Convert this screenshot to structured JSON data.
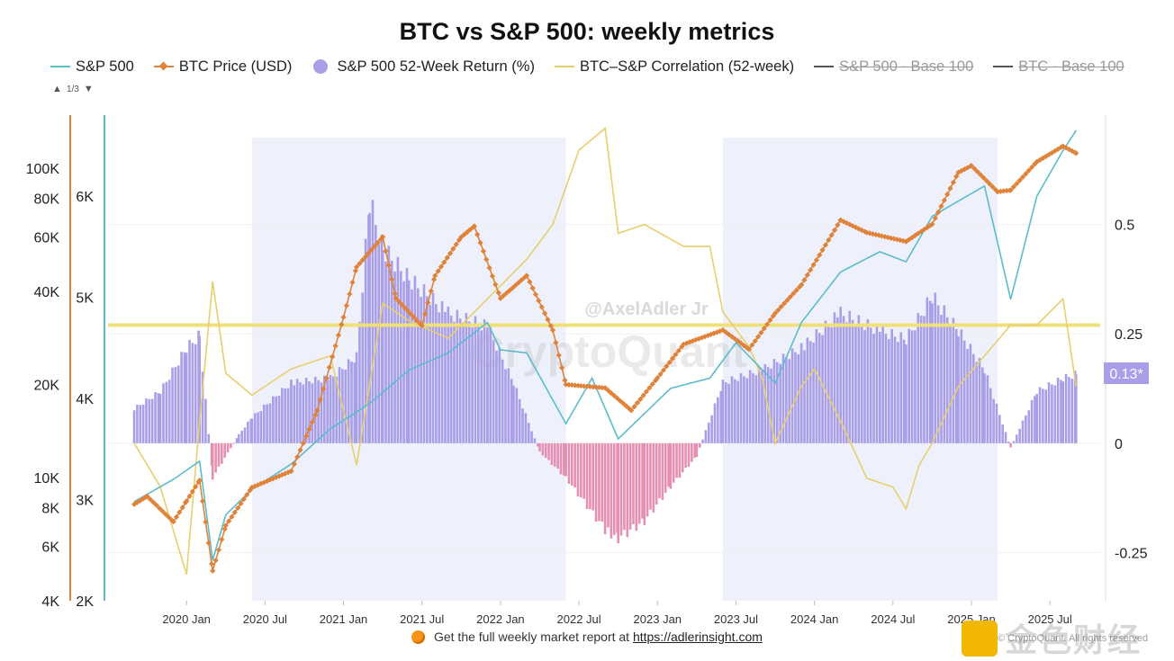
{
  "chart_data": {
    "type": "line",
    "title": "BTC vs S&P 500: weekly metrics",
    "watermarks": [
      "@AxelAdler Jr",
      "CryptoQuant"
    ],
    "footer": {
      "text": "Get the full weekly market report at",
      "link": "https://adlerinsight.com"
    },
    "copyright": "© CryptoQuant. All rights reserved",
    "brand_watermark": "金色财经",
    "pager": {
      "up": "▲",
      "label": "1/3",
      "down": "▼"
    },
    "x_ticks": [
      "2020 Jan",
      "2020 Jul",
      "2021 Jan",
      "2021 Jul",
      "2022 Jan",
      "2022 Jul",
      "2023 Jan",
      "2023 Jul",
      "2024 Jan",
      "2024 Jul",
      "2025 Jan",
      "2025 Jul"
    ],
    "btc_axis": {
      "ticks": [
        "4K",
        "6K",
        "8K",
        "10K",
        "20K",
        "40K",
        "60K",
        "80K",
        "100K"
      ],
      "scale": "log",
      "range": [
        4000,
        130000
      ]
    },
    "spx_axis": {
      "ticks": [
        "2K",
        "3K",
        "4K",
        "5K",
        "6K"
      ],
      "range": [
        2000,
        6800
      ]
    },
    "right_axis": {
      "ticks": [
        "0.5",
        "0.25",
        "0",
        "-0.25"
      ],
      "range": [
        -0.36,
        0.75
      ]
    },
    "current_badge": "0.13*",
    "correlation_reference": 0.27,
    "colors": {
      "spx": "#5bbccb",
      "btc": "#e0833a",
      "ret_pos": "#a99ee8",
      "ret_neg": "#e68fb2",
      "corr": "#e8cf6e",
      "refline": "#efe07a",
      "shade": "#eef1fb",
      "btc_axis_line": "#e0833a",
      "spx_axis_line": "#5bbccb",
      "badge": "#a99ee8"
    },
    "shaded_ranges": [
      [
        "2020-06",
        "2022-06"
      ],
      [
        "2023-06",
        "2025-03"
      ]
    ],
    "series": [
      {
        "name": "S&P 500",
        "color": "#5bbccb",
        "axis": "spx",
        "points": [
          [
            "2019-09",
            2980
          ],
          [
            "2019-12",
            3200
          ],
          [
            "2020-02",
            3380
          ],
          [
            "2020-03",
            2400
          ],
          [
            "2020-04",
            2850
          ],
          [
            "2020-06",
            3100
          ],
          [
            "2020-09",
            3350
          ],
          [
            "2020-12",
            3700
          ],
          [
            "2021-03",
            3950
          ],
          [
            "2021-06",
            4280
          ],
          [
            "2021-09",
            4450
          ],
          [
            "2021-12",
            4750
          ],
          [
            "2022-01",
            4480
          ],
          [
            "2022-03",
            4450
          ],
          [
            "2022-06",
            3750
          ],
          [
            "2022-08",
            4200
          ],
          [
            "2022-10",
            3600
          ],
          [
            "2022-12",
            3850
          ],
          [
            "2023-02",
            4100
          ],
          [
            "2023-05",
            4200
          ],
          [
            "2023-07",
            4550
          ],
          [
            "2023-10",
            4150
          ],
          [
            "2023-12",
            4750
          ],
          [
            "2024-03",
            5250
          ],
          [
            "2024-06",
            5450
          ],
          [
            "2024-08",
            5350
          ],
          [
            "2024-10",
            5800
          ],
          [
            "2024-12",
            5950
          ],
          [
            "2025-02",
            6100
          ],
          [
            "2025-04",
            4980
          ],
          [
            "2025-06",
            6000
          ],
          [
            "2025-08",
            6450
          ],
          [
            "2025-09",
            6650
          ]
        ]
      },
      {
        "name": "BTC Price (USD)",
        "color": "#e0833a",
        "axis": "btc",
        "points": [
          [
            "2019-09",
            8200
          ],
          [
            "2019-10",
            8700
          ],
          [
            "2019-12",
            7200
          ],
          [
            "2020-01",
            8400
          ],
          [
            "2020-02",
            9800
          ],
          [
            "2020-03",
            5000
          ],
          [
            "2020-04",
            7000
          ],
          [
            "2020-06",
            9300
          ],
          [
            "2020-09",
            10500
          ],
          [
            "2020-11",
            16500
          ],
          [
            "2021-01",
            33000
          ],
          [
            "2021-02",
            48000
          ],
          [
            "2021-04",
            60000
          ],
          [
            "2021-05",
            38000
          ],
          [
            "2021-07",
            31000
          ],
          [
            "2021-08",
            45000
          ],
          [
            "2021-10",
            60000
          ],
          [
            "2021-11",
            65000
          ],
          [
            "2022-01",
            38000
          ],
          [
            "2022-03",
            45000
          ],
          [
            "2022-05",
            30000
          ],
          [
            "2022-06",
            20000
          ],
          [
            "2022-09",
            19500
          ],
          [
            "2022-11",
            16500
          ],
          [
            "2023-01",
            21000
          ],
          [
            "2023-03",
            27000
          ],
          [
            "2023-06",
            30000
          ],
          [
            "2023-08",
            26000
          ],
          [
            "2023-10",
            34000
          ],
          [
            "2023-12",
            42000
          ],
          [
            "2024-03",
            68000
          ],
          [
            "2024-05",
            62000
          ],
          [
            "2024-08",
            58000
          ],
          [
            "2024-10",
            66000
          ],
          [
            "2024-12",
            97000
          ],
          [
            "2025-01",
            102000
          ],
          [
            "2025-03",
            84000
          ],
          [
            "2025-04",
            85000
          ],
          [
            "2025-06",
            105000
          ],
          [
            "2025-08",
            118000
          ],
          [
            "2025-09",
            112000
          ]
        ]
      },
      {
        "name": "S&P 500 52-Week Return (%)",
        "color": "#a99ee8",
        "axis": "right",
        "style": "bars",
        "points": [
          [
            "2019-09",
            0.08
          ],
          [
            "2019-11",
            0.12
          ],
          [
            "2020-01",
            0.22
          ],
          [
            "2020-02",
            0.25
          ],
          [
            "2020-03",
            -0.08
          ],
          [
            "2020-05",
            0.02
          ],
          [
            "2020-06",
            0.06
          ],
          [
            "2020-09",
            0.14
          ],
          [
            "2020-12",
            0.15
          ],
          [
            "2021-02",
            0.2
          ],
          [
            "2021-03",
            0.56
          ],
          [
            "2021-04",
            0.45
          ],
          [
            "2021-06",
            0.38
          ],
          [
            "2021-09",
            0.3
          ],
          [
            "2021-12",
            0.27
          ],
          [
            "2022-02",
            0.14
          ],
          [
            "2022-04",
            -0.02
          ],
          [
            "2022-06",
            -0.08
          ],
          [
            "2022-09",
            -0.2
          ],
          [
            "2022-10",
            -0.22
          ],
          [
            "2022-12",
            -0.18
          ],
          [
            "2023-02",
            -0.1
          ],
          [
            "2023-04",
            -0.03
          ],
          [
            "2023-06",
            0.14
          ],
          [
            "2023-09",
            0.17
          ],
          [
            "2023-12",
            0.22
          ],
          [
            "2024-03",
            0.3
          ],
          [
            "2024-06",
            0.26
          ],
          [
            "2024-08",
            0.24
          ],
          [
            "2024-10",
            0.34
          ],
          [
            "2024-12",
            0.26
          ],
          [
            "2025-02",
            0.17
          ],
          [
            "2025-04",
            -0.01
          ],
          [
            "2025-06",
            0.12
          ],
          [
            "2025-08",
            0.15
          ],
          [
            "2025-09",
            0.16
          ]
        ]
      },
      {
        "name": "BTC–S&P Correlation (52-week)",
        "color": "#e8cf6e",
        "axis": "right",
        "points": [
          [
            "2019-09",
            0.0
          ],
          [
            "2019-11",
            -0.1
          ],
          [
            "2020-01",
            -0.3
          ],
          [
            "2020-02",
            0.05
          ],
          [
            "2020-03",
            0.37
          ],
          [
            "2020-04",
            0.16
          ],
          [
            "2020-06",
            0.11
          ],
          [
            "2020-09",
            0.17
          ],
          [
            "2020-12",
            0.2
          ],
          [
            "2021-02",
            -0.05
          ],
          [
            "2021-04",
            0.32
          ],
          [
            "2021-06",
            0.28
          ],
          [
            "2021-09",
            0.24
          ],
          [
            "2021-12",
            0.33
          ],
          [
            "2022-03",
            0.42
          ],
          [
            "2022-05",
            0.5
          ],
          [
            "2022-07",
            0.67
          ],
          [
            "2022-09",
            0.72
          ],
          [
            "2022-10",
            0.48
          ],
          [
            "2022-12",
            0.5
          ],
          [
            "2023-03",
            0.45
          ],
          [
            "2023-05",
            0.45
          ],
          [
            "2023-06",
            0.3
          ],
          [
            "2023-08",
            0.22
          ],
          [
            "2023-09",
            0.15
          ],
          [
            "2023-10",
            0.0
          ],
          [
            "2023-12",
            0.13
          ],
          [
            "2024-01",
            0.17
          ],
          [
            "2024-03",
            0.05
          ],
          [
            "2024-05",
            -0.08
          ],
          [
            "2024-07",
            -0.1
          ],
          [
            "2024-08",
            -0.15
          ],
          [
            "2024-09",
            -0.05
          ],
          [
            "2024-10",
            0.0
          ],
          [
            "2024-12",
            0.13
          ],
          [
            "2025-02",
            0.2
          ],
          [
            "2025-04",
            0.27
          ],
          [
            "2025-06",
            0.27
          ],
          [
            "2025-08",
            0.33
          ],
          [
            "2025-09",
            0.13
          ]
        ]
      },
      {
        "name": "S&P 500 - Base 100",
        "color": "#555555",
        "visible": false
      },
      {
        "name": "BTC - Base 100",
        "color": "#555555",
        "visible": false
      }
    ]
  }
}
